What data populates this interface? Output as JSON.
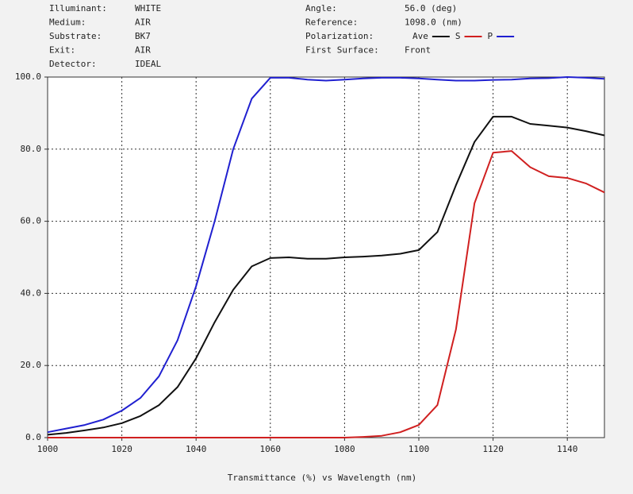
{
  "chart_data": {
    "type": "line",
    "info_left": [
      {
        "label": "Illuminant:",
        "value": "WHITE"
      },
      {
        "label": "Medium:",
        "value": "AIR"
      },
      {
        "label": "Substrate:",
        "value": "BK7"
      },
      {
        "label": "Exit:",
        "value": "AIR"
      },
      {
        "label": "Detector:",
        "value": "IDEAL"
      }
    ],
    "info_right": [
      {
        "label": "Angle:",
        "value": "56.0 (deg)"
      },
      {
        "label": "Reference:",
        "value": "1098.0 (nm)"
      },
      {
        "label": "Polarization:",
        "value": ""
      },
      {
        "label": "First Surface:",
        "value": "Front"
      }
    ],
    "x_label": "Transmittance (%)  vs  Wavelength (nm)",
    "x": [
      1000,
      1005,
      1010,
      1015,
      1020,
      1025,
      1030,
      1035,
      1040,
      1045,
      1050,
      1055,
      1060,
      1065,
      1070,
      1075,
      1080,
      1085,
      1090,
      1095,
      1100,
      1105,
      1110,
      1115,
      1120,
      1125,
      1130,
      1135,
      1140,
      1145,
      1150
    ],
    "series": [
      {
        "name": "Ave",
        "color": "#111111",
        "values": [
          0.8,
          1.3,
          2,
          2.8,
          4,
          6,
          9,
          14,
          22,
          32,
          41,
          47.5,
          49.8,
          50,
          49.6,
          49.6,
          50,
          50.2,
          50.5,
          51,
          52,
          57,
          70,
          82,
          89,
          89,
          87,
          86.5,
          86,
          85,
          83.8
        ]
      },
      {
        "name": "S",
        "color": "#d02020",
        "values": [
          0,
          0,
          0,
          0,
          0,
          0,
          0,
          0,
          0,
          0,
          0,
          0,
          0,
          0,
          0,
          0,
          0,
          0.2,
          0.5,
          1.5,
          3.5,
          9,
          30,
          65,
          79,
          79.5,
          75,
          72.5,
          72,
          70.5,
          68
        ]
      },
      {
        "name": "P",
        "color": "#2020d0",
        "values": [
          1.5,
          2.5,
          3.5,
          5,
          7.5,
          11,
          17,
          27,
          42,
          60,
          80,
          94,
          99.8,
          99.8,
          99.3,
          99,
          99.3,
          99.6,
          99.8,
          99.8,
          99.6,
          99.3,
          99,
          99,
          99.2,
          99.3,
          99.6,
          99.7,
          100,
          99.8,
          99.5
        ]
      }
    ],
    "xlim": [
      1000,
      1150
    ],
    "xticks": [
      1000,
      1020,
      1040,
      1060,
      1080,
      1100,
      1120,
      1140
    ],
    "ylim": [
      0,
      100
    ],
    "yticks": [
      {
        "value": 0,
        "label": "0.0"
      },
      {
        "value": 20,
        "label": "20.0"
      },
      {
        "value": 40,
        "label": "40.0"
      },
      {
        "value": 60,
        "label": "60.0"
      },
      {
        "value": 80,
        "label": "80.0"
      },
      {
        "value": 100,
        "label": "100.0"
      }
    ],
    "grid": true
  }
}
